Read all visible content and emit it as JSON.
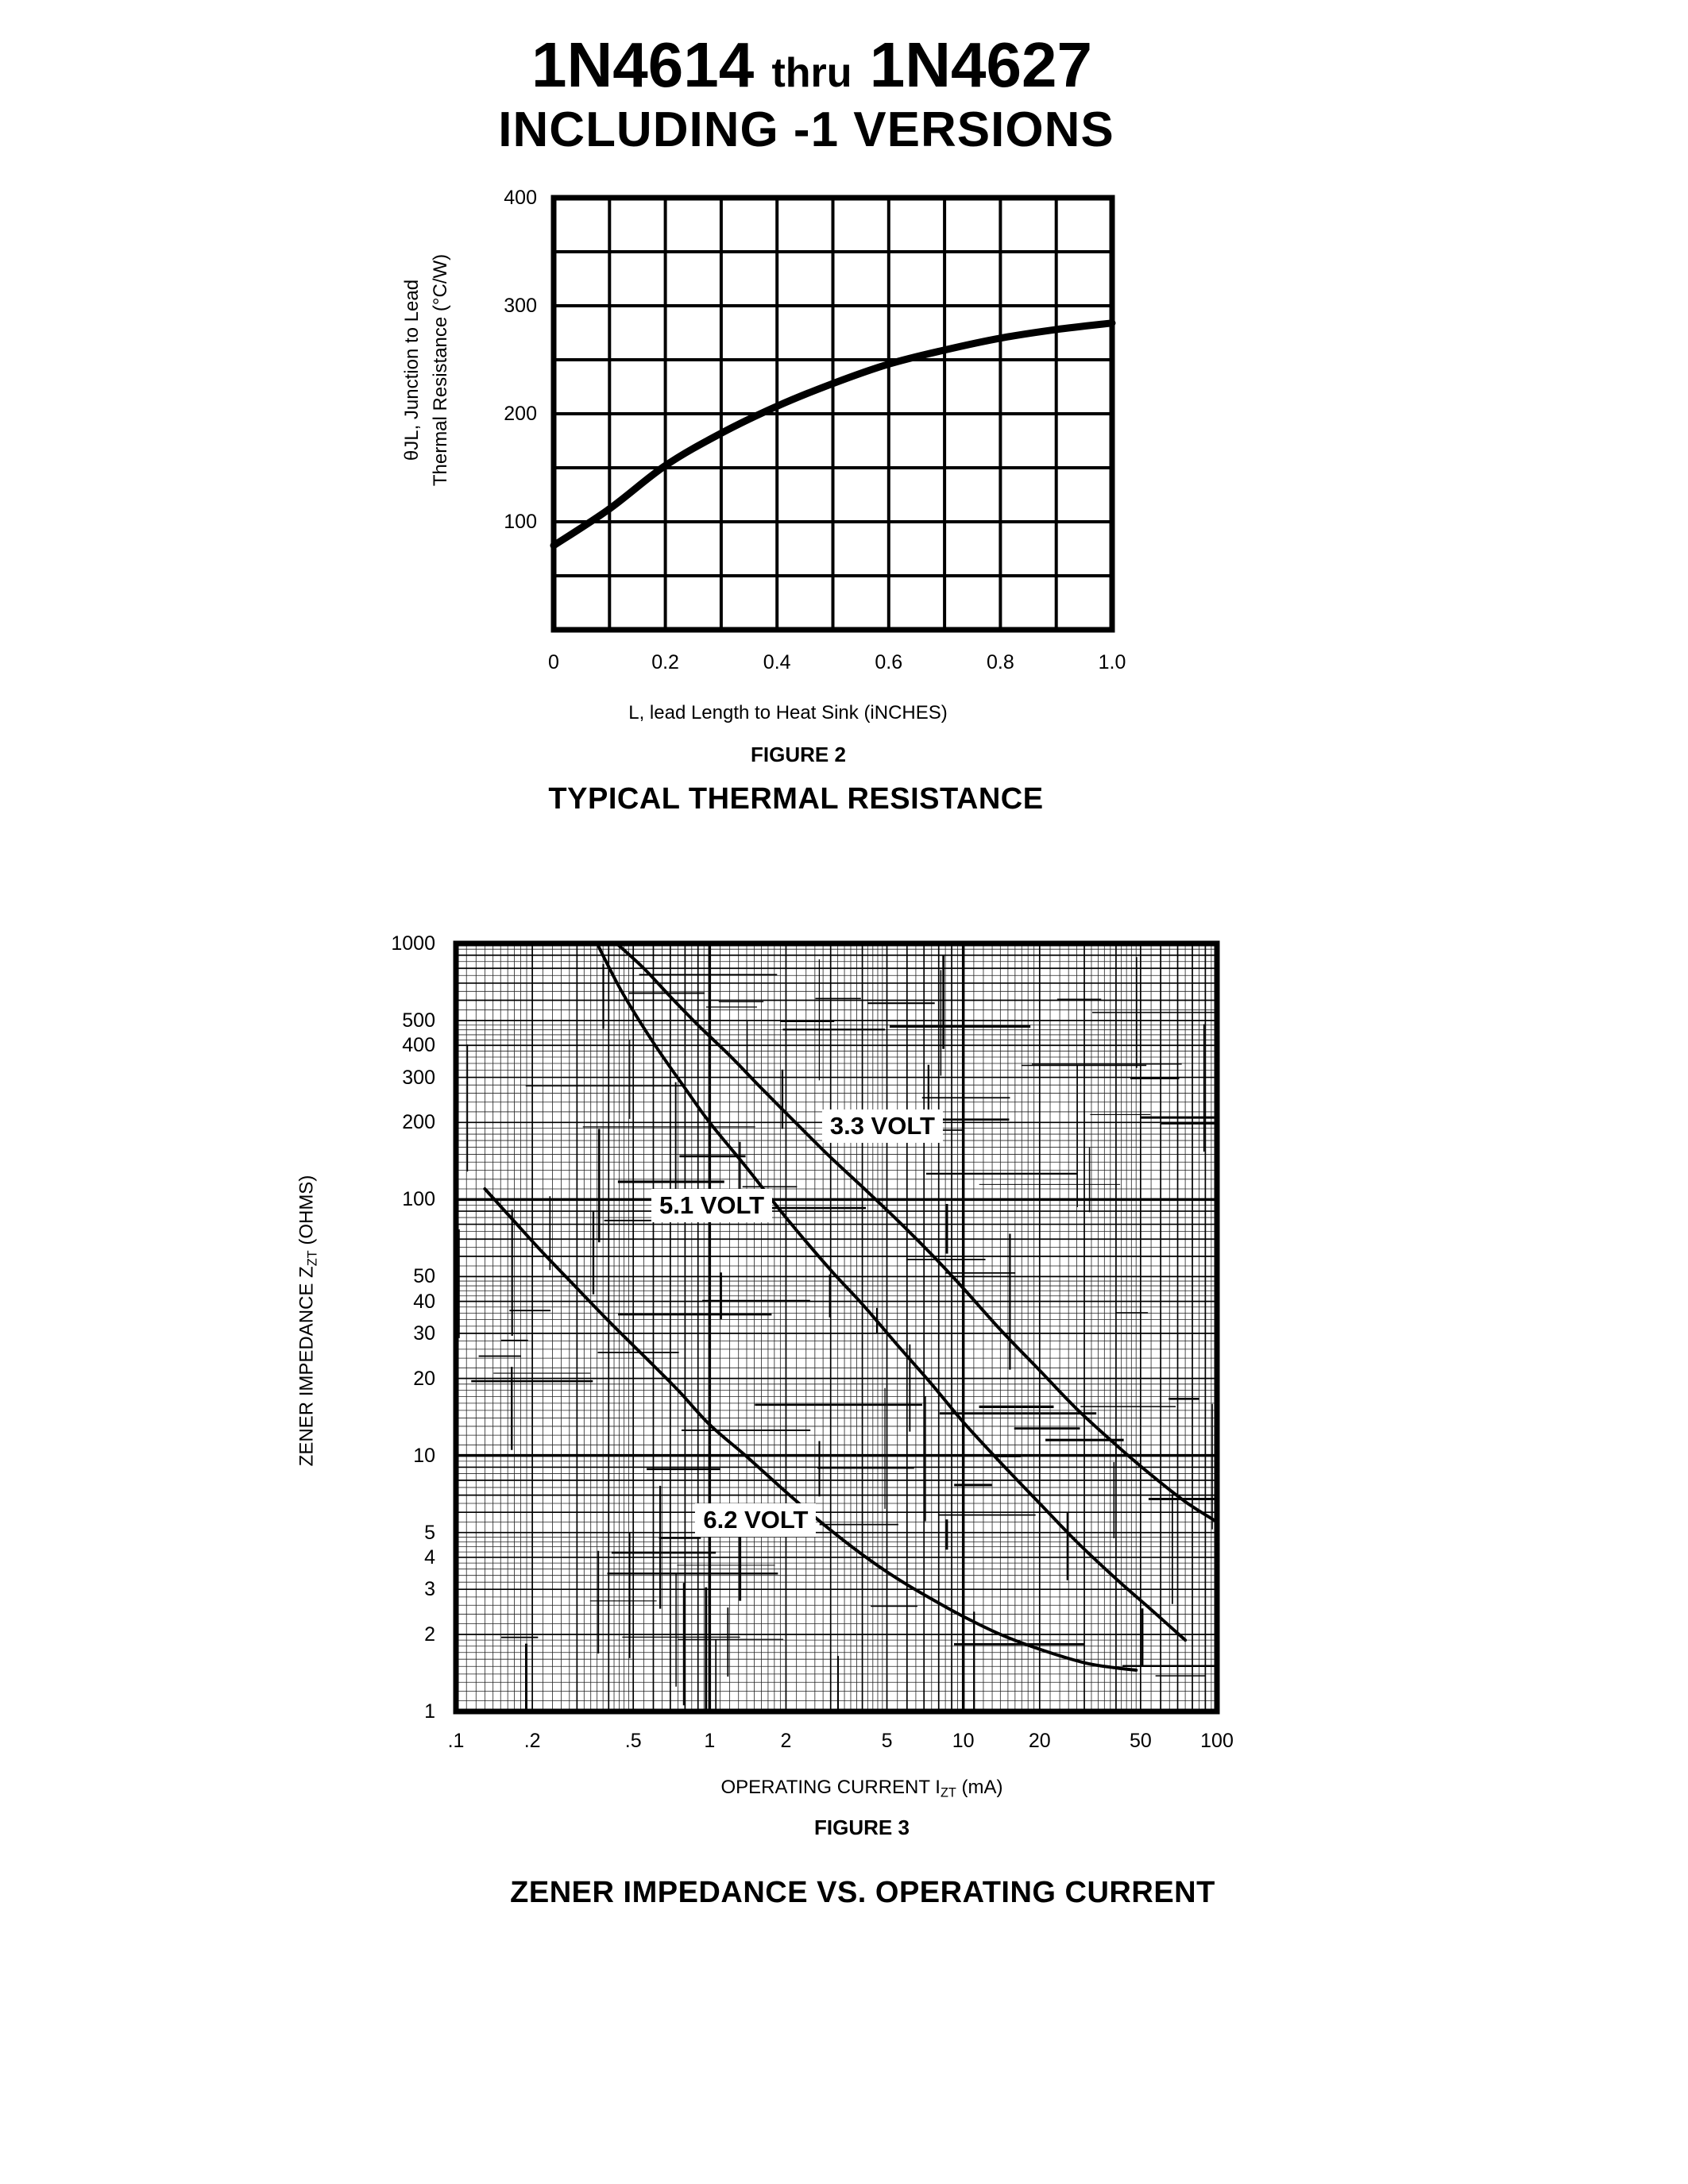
{
  "page": {
    "title_part1": "1N4614",
    "title_thru": "thru",
    "title_part2": "1N4627",
    "subtitle": "INCLUDING -1 VERSIONS"
  },
  "colors": {
    "ink": "#000000",
    "paper": "#ffffff"
  },
  "chart_data": [
    {
      "id": "figure2",
      "type": "line",
      "title": "FIGURE 2",
      "subtitle": "TYPICAL THERMAL RESISTANCE",
      "xlabel": "L, lead Length to Heat Sink (iNCHES)",
      "ylabel_line1": "θJL, Junction to Lead",
      "ylabel_line2": "Thermal Resistance (°C/W)",
      "x_scale": "linear",
      "y_scale": "linear",
      "xlim": [
        0,
        1.0
      ],
      "ylim": [
        0,
        400
      ],
      "x_grid_step": 0.1,
      "y_grid_step": 50,
      "grid": "on",
      "x_ticks": [
        {
          "v": 0,
          "label": "0"
        },
        {
          "v": 0.2,
          "label": "0.2"
        },
        {
          "v": 0.4,
          "label": "0.4"
        },
        {
          "v": 0.6,
          "label": "0.6"
        },
        {
          "v": 0.8,
          "label": "0.8"
        },
        {
          "v": 1.0,
          "label": "1.0"
        }
      ],
      "y_ticks": [
        {
          "v": 100,
          "label": "100"
        },
        {
          "v": 200,
          "label": "200"
        },
        {
          "v": 300,
          "label": "300"
        },
        {
          "v": 400,
          "label": "400"
        }
      ],
      "series": [
        {
          "name": "junction-to-lead-thermal-resistance",
          "x": [
            0,
            0.1,
            0.2,
            0.3,
            0.4,
            0.5,
            0.6,
            0.7,
            0.8,
            0.9,
            1.0
          ],
          "y": [
            78,
            112,
            152,
            182,
            207,
            228,
            246,
            259,
            270,
            278,
            284
          ]
        }
      ]
    },
    {
      "id": "figure3",
      "type": "line",
      "title": "FIGURE 3",
      "subtitle": "ZENER IMPEDANCE VS. OPERATING CURRENT",
      "xlabel_pre": "OPERATING CURRENT I",
      "xlabel_sub": "ZT",
      "xlabel_post": " (mA)",
      "ylabel_pre": "ZENER IMPEDANCE Z",
      "ylabel_sub": "ZT",
      "ylabel_post": " (OHMS)",
      "x_scale": "log",
      "y_scale": "log",
      "xlim": [
        0.1,
        100
      ],
      "ylim": [
        1,
        1000
      ],
      "grid": "log-log dense",
      "x_ticks": [
        {
          "v": 0.1,
          "label": ".1"
        },
        {
          "v": 0.2,
          "label": ".2"
        },
        {
          "v": 0.5,
          "label": ".5"
        },
        {
          "v": 1,
          "label": "1"
        },
        {
          "v": 2,
          "label": "2"
        },
        {
          "v": 5,
          "label": "5"
        },
        {
          "v": 10,
          "label": "10"
        },
        {
          "v": 20,
          "label": "20"
        },
        {
          "v": 50,
          "label": "50"
        },
        {
          "v": 100,
          "label": "100"
        }
      ],
      "y_ticks": [
        {
          "v": 1000,
          "label": "1000"
        },
        {
          "v": 500,
          "label": "500"
        },
        {
          "v": 400,
          "label": "400"
        },
        {
          "v": 300,
          "label": "300"
        },
        {
          "v": 200,
          "label": "200"
        },
        {
          "v": 100,
          "label": "100"
        },
        {
          "v": 50,
          "label": "50"
        },
        {
          "v": 40,
          "label": "40"
        },
        {
          "v": 30,
          "label": "30"
        },
        {
          "v": 20,
          "label": "20"
        },
        {
          "v": 10,
          "label": "10"
        },
        {
          "v": 5,
          "label": "5"
        },
        {
          "v": 4,
          "label": "4"
        },
        {
          "v": 3,
          "label": "3"
        },
        {
          "v": 2,
          "label": "2"
        },
        {
          "v": 1,
          "label": "1"
        }
      ],
      "series": [
        {
          "name": "3.3 VOLT",
          "label": "3.3 VOLT",
          "label_anchor": {
            "x": 4.8,
            "y": 193
          },
          "points": [
            [
              0.43,
              1000
            ],
            [
              0.55,
              800
            ],
            [
              0.7,
              620
            ],
            [
              0.9,
              480
            ],
            [
              1.2,
              365
            ],
            [
              1.6,
              272
            ],
            [
              2.2,
              198
            ],
            [
              3,
              146
            ],
            [
              4,
              112
            ],
            [
              5.5,
              83
            ],
            [
              7.5,
              61
            ],
            [
              10,
              45
            ],
            [
              14,
              31
            ],
            [
              20,
              21.5
            ],
            [
              28,
              15.2
            ],
            [
              40,
              11
            ],
            [
              55,
              8.4
            ],
            [
              75,
              6.6
            ],
            [
              100,
              5.5
            ]
          ]
        },
        {
          "name": "5.1 VOLT",
          "label": "5.1 VOLT",
          "label_anchor": {
            "x": 1.02,
            "y": 95
          },
          "points": [
            [
              0.36,
              1000
            ],
            [
              0.45,
              650
            ],
            [
              0.6,
              410
            ],
            [
              0.8,
              272
            ],
            [
              1,
              200
            ],
            [
              1.4,
              133
            ],
            [
              2,
              85
            ],
            [
              3,
              53
            ],
            [
              4,
              39
            ],
            [
              5.5,
              27
            ],
            [
              7.5,
              19
            ],
            [
              10,
              13.5
            ],
            [
              14,
              9.4
            ],
            [
              20,
              6.5
            ],
            [
              28,
              4.6
            ],
            [
              40,
              3.3
            ],
            [
              55,
              2.5
            ],
            [
              75,
              1.9
            ]
          ]
        },
        {
          "name": "6.2 VOLT",
          "label": "6.2 VOLT",
          "label_anchor": {
            "x": 1.52,
            "y": 5.6
          },
          "points": [
            [
              0.13,
              110
            ],
            [
              0.17,
              82
            ],
            [
              0.22,
              62
            ],
            [
              0.3,
              45
            ],
            [
              0.4,
              33.5
            ],
            [
              0.55,
              24.5
            ],
            [
              0.75,
              18
            ],
            [
              1,
              13.2
            ],
            [
              1.4,
              9.9
            ],
            [
              2,
              7.2
            ],
            [
              2.8,
              5.4
            ],
            [
              4,
              4.1
            ],
            [
              5.5,
              3.3
            ],
            [
              7.5,
              2.75
            ],
            [
              10,
              2.35
            ],
            [
              14,
              2.0
            ],
            [
              20,
              1.75
            ],
            [
              30,
              1.55
            ],
            [
              40,
              1.48
            ],
            [
              48,
              1.45
            ]
          ]
        }
      ]
    }
  ]
}
